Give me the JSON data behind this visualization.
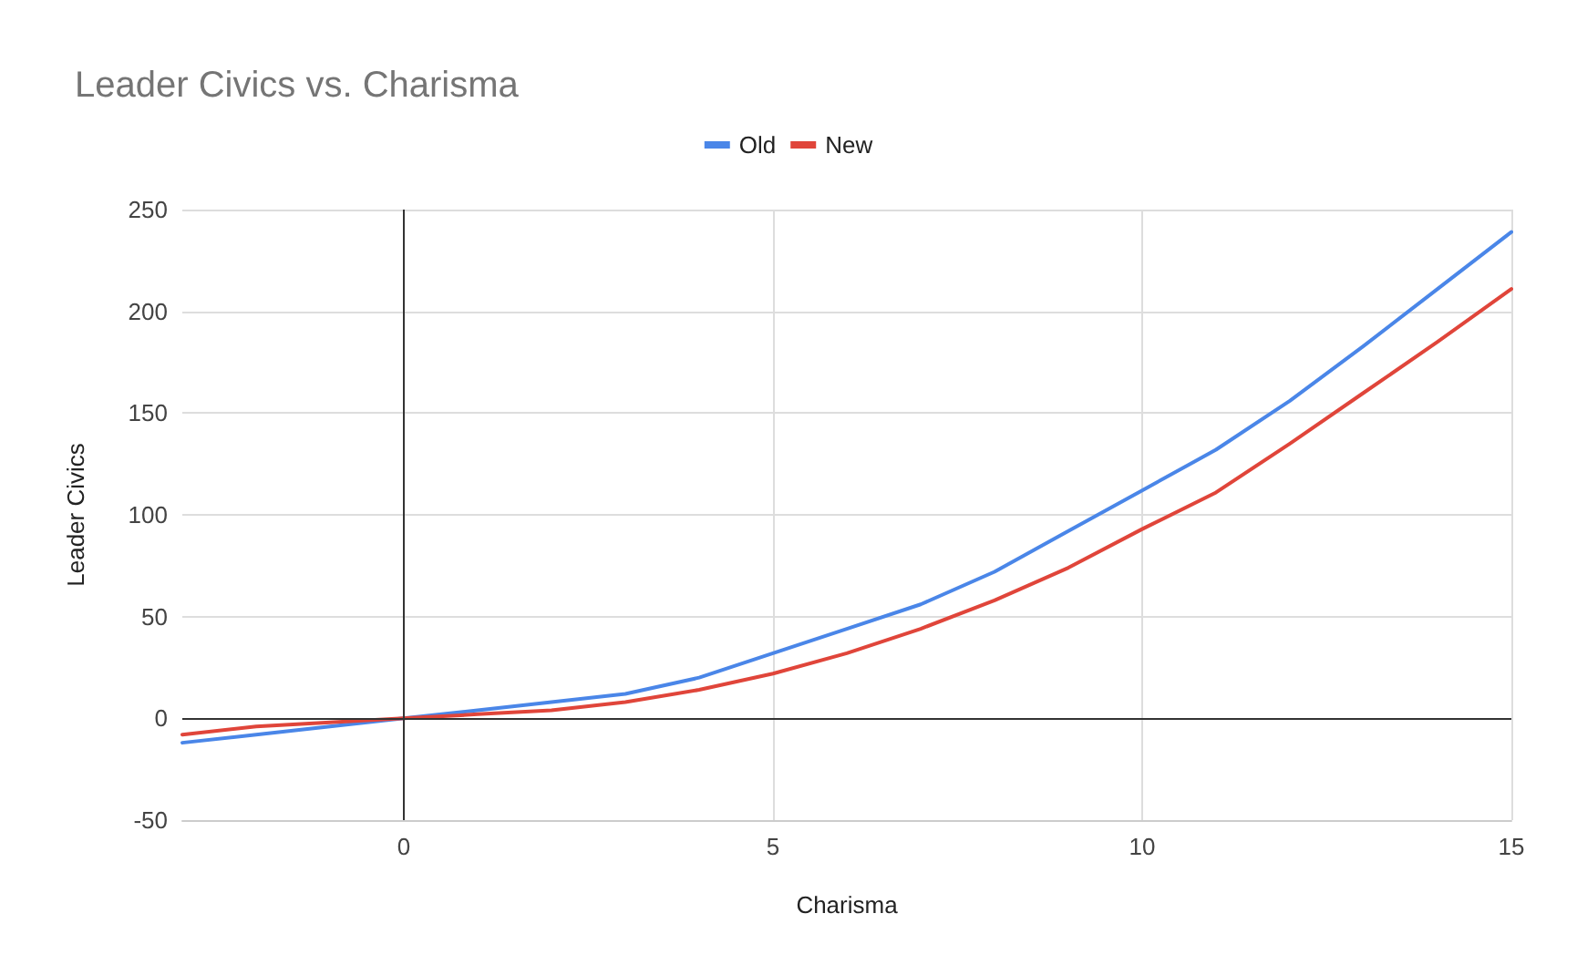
{
  "chart_data": {
    "type": "line",
    "title": "Leader Civics vs. Charisma",
    "xlabel": "Charisma",
    "ylabel": "Leader Civics",
    "x": [
      -3,
      -2,
      -1,
      0,
      1,
      2,
      3,
      4,
      5,
      6,
      7,
      8,
      9,
      10,
      11,
      12,
      13,
      14,
      15
    ],
    "series": [
      {
        "name": "Old",
        "color": "#4a86e8",
        "values": [
          -12,
          -8,
          -4,
          0,
          4,
          8,
          12,
          20,
          32,
          44,
          56,
          72,
          92,
          112,
          132,
          156,
          183,
          211,
          239
        ]
      },
      {
        "name": "New",
        "color": "#e0453a",
        "values": [
          -8,
          -4,
          -2,
          0,
          2,
          4,
          8,
          14,
          22,
          32,
          44,
          58,
          74,
          93,
          111,
          135,
          160,
          185,
          211
        ]
      }
    ],
    "xlim": [
      -3,
      15
    ],
    "xticks": [
      0,
      5,
      10,
      15
    ],
    "ylim": [
      -50,
      250
    ],
    "yticks": [
      -50,
      0,
      50,
      100,
      150,
      200,
      250
    ],
    "grid": true,
    "legend": "top",
    "marker": "none",
    "line_style": "solid"
  }
}
